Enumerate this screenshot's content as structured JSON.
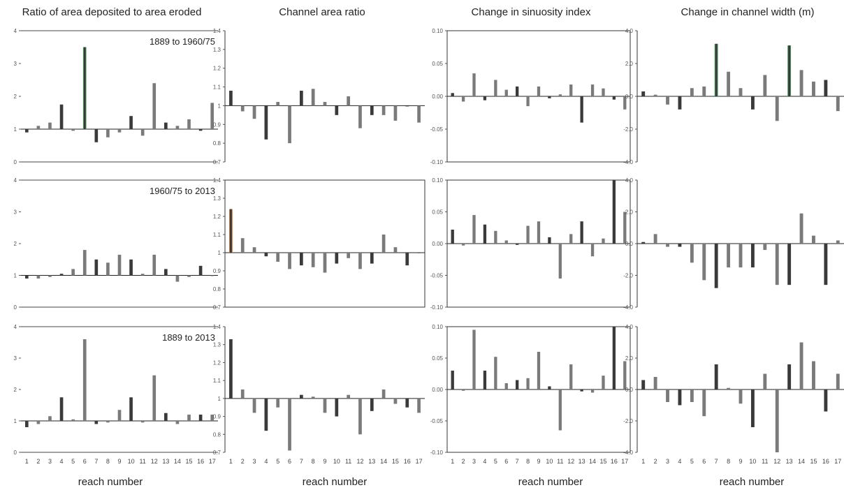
{
  "figure": {
    "columns": [
      {
        "title": "Ratio of area deposited to area eroded",
        "xlabel": "reach number"
      },
      {
        "title": "Channel area ratio",
        "xlabel": "reach number"
      },
      {
        "title": "Change in sinuosity index",
        "xlabel": "reach number"
      },
      {
        "title": "Change in channel width (m)",
        "xlabel": "reach number"
      }
    ],
    "rows": [
      "1889 to 1960/75",
      "1960/75 to 2013",
      "1889 to 2013"
    ]
  },
  "colors": {
    "bar_dark": "#3a3a3a",
    "bar_mid": "#7a7a7a",
    "accent_green": "#4a9a5a",
    "accent_orange": "#c8743a"
  },
  "chart_data": [
    {
      "type": "bar",
      "row": 0,
      "col": 0,
      "title": "Ratio of area deposited to area eroded",
      "annotation": "1889 to 1960/75",
      "baseline": 1,
      "ylim": [
        0,
        4
      ],
      "yticks": [
        "0",
        "1",
        "2",
        "3",
        "4"
      ],
      "show_xticks": false,
      "categories": [
        "1",
        "2",
        "3",
        "4",
        "5",
        "6",
        "7",
        "8",
        "9",
        "10",
        "11",
        "12",
        "13",
        "14",
        "15",
        "16",
        "17"
      ],
      "values": [
        0.9,
        1.1,
        1.2,
        1.75,
        0.95,
        3.5,
        0.6,
        0.75,
        0.9,
        1.4,
        0.8,
        2.4,
        1.2,
        1.1,
        1.3,
        0.95,
        1.8
      ],
      "highlight": {
        "6": "green"
      }
    },
    {
      "type": "bar",
      "row": 0,
      "col": 1,
      "title": "Channel area ratio",
      "baseline": 1,
      "ylim": [
        0.7,
        1.4
      ],
      "yticks": [
        "0.7",
        "0.8",
        "0.9",
        "1",
        "1.1",
        "1.2",
        "1.3",
        "1.4"
      ],
      "show_xticks": false,
      "categories": [
        "1",
        "2",
        "3",
        "4",
        "5",
        "6",
        "7",
        "8",
        "9",
        "10",
        "11",
        "12",
        "13",
        "14",
        "15",
        "16",
        "17"
      ],
      "values": [
        1.08,
        0.97,
        0.93,
        0.82,
        1.02,
        0.8,
        1.08,
        1.09,
        1.02,
        0.95,
        1.05,
        0.88,
        0.95,
        0.95,
        0.92,
        1.0,
        0.91
      ]
    },
    {
      "type": "bar",
      "row": 0,
      "col": 2,
      "title": "Change in sinuosity index",
      "baseline": 0,
      "ylim": [
        -0.1,
        0.1
      ],
      "yticks": [
        "-0.10",
        "-0.05",
        "0.00",
        "0.05",
        "0.10"
      ],
      "show_xticks": false,
      "categories": [
        "1",
        "2",
        "3",
        "4",
        "5",
        "6",
        "7",
        "8",
        "9",
        "10",
        "11",
        "12",
        "13",
        "14",
        "15",
        "16",
        "17"
      ],
      "values": [
        0.005,
        -0.008,
        0.035,
        -0.006,
        0.025,
        0.01,
        0.015,
        -0.015,
        0.015,
        -0.003,
        0.003,
        0.018,
        -0.04,
        0.018,
        0.012,
        -0.005,
        -0.02
      ]
    },
    {
      "type": "bar",
      "row": 0,
      "col": 3,
      "title": "Change in channel width (m)",
      "baseline": 0,
      "ylim": [
        -4,
        4
      ],
      "yticks": [
        "-4.0",
        "-2.0",
        "0.0",
        "2.0",
        "4.0"
      ],
      "show_xticks": false,
      "categories": [
        "1",
        "2",
        "3",
        "4",
        "5",
        "6",
        "7",
        "8",
        "9",
        "10",
        "11",
        "12",
        "13",
        "14",
        "15",
        "16",
        "17"
      ],
      "values": [
        0.3,
        0.1,
        -0.5,
        -0.8,
        0.5,
        0.6,
        3.2,
        1.5,
        0.5,
        -0.8,
        1.3,
        -1.5,
        3.1,
        1.6,
        0.9,
        1.0,
        -0.9
      ],
      "highlight": {
        "7": "green",
        "13": "green"
      }
    },
    {
      "type": "bar",
      "row": 1,
      "col": 0,
      "annotation": "1960/75 to 2013",
      "baseline": 1,
      "ylim": [
        0,
        4
      ],
      "yticks": [
        "0",
        "1",
        "2",
        "3",
        "4"
      ],
      "show_xticks": false,
      "categories": [
        "1",
        "2",
        "3",
        "4",
        "5",
        "6",
        "7",
        "8",
        "9",
        "10",
        "11",
        "12",
        "13",
        "14",
        "15",
        "16",
        "17"
      ],
      "values": [
        0.9,
        0.9,
        0.95,
        1.05,
        1.2,
        1.8,
        1.5,
        1.4,
        1.65,
        1.5,
        1.05,
        1.65,
        1.2,
        0.8,
        0.95,
        1.3,
        1.0
      ]
    },
    {
      "type": "bar",
      "row": 1,
      "col": 1,
      "baseline": 1,
      "ylim": [
        0.7,
        1.4
      ],
      "yticks": [
        "0.7",
        "0.8",
        "0.9",
        "1",
        "1.1",
        "1.2",
        "1.3",
        "1.4"
      ],
      "show_xticks": false,
      "categories": [
        "1",
        "2",
        "3",
        "4",
        "5",
        "6",
        "7",
        "8",
        "9",
        "10",
        "11",
        "12",
        "13",
        "14",
        "15",
        "16",
        "17"
      ],
      "values": [
        1.24,
        1.08,
        1.03,
        0.98,
        0.95,
        0.91,
        0.93,
        0.92,
        0.89,
        0.94,
        0.97,
        0.91,
        0.94,
        1.1,
        1.03,
        0.93,
        1.0
      ],
      "highlight": {
        "1": "orange"
      }
    },
    {
      "type": "bar",
      "row": 1,
      "col": 2,
      "baseline": 0,
      "ylim": [
        -0.1,
        0.1
      ],
      "yticks": [
        "-0.10",
        "-0.05",
        "0.00",
        "0.05",
        "0.10"
      ],
      "show_xticks": false,
      "categories": [
        "1",
        "2",
        "3",
        "4",
        "5",
        "6",
        "7",
        "8",
        "9",
        "10",
        "11",
        "12",
        "13",
        "14",
        "15",
        "16",
        "17"
      ],
      "values": [
        0.022,
        -0.003,
        0.045,
        0.03,
        0.02,
        0.005,
        -0.002,
        0.028,
        0.035,
        0.01,
        -0.055,
        0.015,
        0.035,
        -0.02,
        0.008,
        0.1,
        0.05
      ]
    },
    {
      "type": "bar",
      "row": 1,
      "col": 3,
      "baseline": 0,
      "ylim": [
        -4,
        4
      ],
      "yticks": [
        "-4.0",
        "-2.0",
        "0.0",
        "2.0",
        "4.0"
      ],
      "show_xticks": false,
      "categories": [
        "1",
        "2",
        "3",
        "4",
        "5",
        "6",
        "7",
        "8",
        "9",
        "10",
        "11",
        "12",
        "13",
        "14",
        "15",
        "16",
        "17"
      ],
      "values": [
        0.1,
        0.6,
        -0.2,
        -0.2,
        -1.2,
        -2.3,
        -2.8,
        -1.5,
        -1.5,
        -1.5,
        -0.4,
        -2.6,
        -2.6,
        1.9,
        0.5,
        -2.6,
        0.2
      ]
    },
    {
      "type": "bar",
      "row": 2,
      "col": 0,
      "annotation": "1889 to 2013",
      "baseline": 1,
      "ylim": [
        0,
        4
      ],
      "yticks": [
        "0",
        "1",
        "2",
        "3",
        "4"
      ],
      "show_xticks": true,
      "categories": [
        "1",
        "2",
        "3",
        "4",
        "5",
        "6",
        "7",
        "8",
        "9",
        "10",
        "11",
        "12",
        "13",
        "14",
        "15",
        "16",
        "17"
      ],
      "values": [
        0.8,
        0.9,
        1.15,
        1.75,
        1.05,
        3.6,
        0.9,
        0.95,
        1.35,
        1.75,
        0.95,
        2.45,
        1.25,
        0.9,
        1.2,
        1.2,
        1.2
      ]
    },
    {
      "type": "bar",
      "row": 2,
      "col": 1,
      "baseline": 1,
      "ylim": [
        0.7,
        1.4
      ],
      "yticks": [
        "0.7",
        "0.8",
        "0.9",
        "1",
        "1.1",
        "1.2",
        "1.3",
        "1.4"
      ],
      "show_xticks": true,
      "categories": [
        "1",
        "2",
        "3",
        "4",
        "5",
        "6",
        "7",
        "8",
        "9",
        "10",
        "11",
        "12",
        "13",
        "14",
        "15",
        "16",
        "17"
      ],
      "values": [
        1.33,
        1.05,
        0.92,
        0.82,
        0.95,
        0.71,
        1.02,
        1.01,
        0.92,
        0.9,
        1.02,
        0.8,
        0.93,
        1.05,
        0.97,
        0.95,
        0.92
      ]
    },
    {
      "type": "bar",
      "row": 2,
      "col": 2,
      "baseline": 0,
      "ylim": [
        -0.1,
        0.1
      ],
      "yticks": [
        "-0.10",
        "-0.05",
        "0.00",
        "0.05",
        "0.10"
      ],
      "show_xticks": true,
      "categories": [
        "1",
        "2",
        "3",
        "4",
        "5",
        "6",
        "7",
        "8",
        "9",
        "10",
        "11",
        "12",
        "13",
        "14",
        "15",
        "16",
        "17"
      ],
      "values": [
        0.03,
        -0.002,
        0.095,
        0.03,
        0.052,
        0.01,
        0.015,
        0.018,
        0.06,
        0.005,
        -0.065,
        0.04,
        -0.003,
        -0.005,
        0.022,
        0.1,
        0.045
      ]
    },
    {
      "type": "bar",
      "row": 2,
      "col": 3,
      "baseline": 0,
      "ylim": [
        -4,
        4
      ],
      "yticks": [
        "-4.0",
        "-2.0",
        "0.0",
        "2.0",
        "4.0"
      ],
      "show_xticks": true,
      "categories": [
        "1",
        "2",
        "3",
        "4",
        "5",
        "6",
        "7",
        "8",
        "9",
        "10",
        "11",
        "12",
        "13",
        "14",
        "15",
        "16",
        "17"
      ],
      "values": [
        0.6,
        0.8,
        -0.8,
        -1.0,
        -0.8,
        -1.7,
        1.6,
        0.1,
        -0.9,
        -2.4,
        1.0,
        -4.0,
        1.6,
        3.0,
        1.8,
        -1.4,
        1.0
      ]
    }
  ]
}
